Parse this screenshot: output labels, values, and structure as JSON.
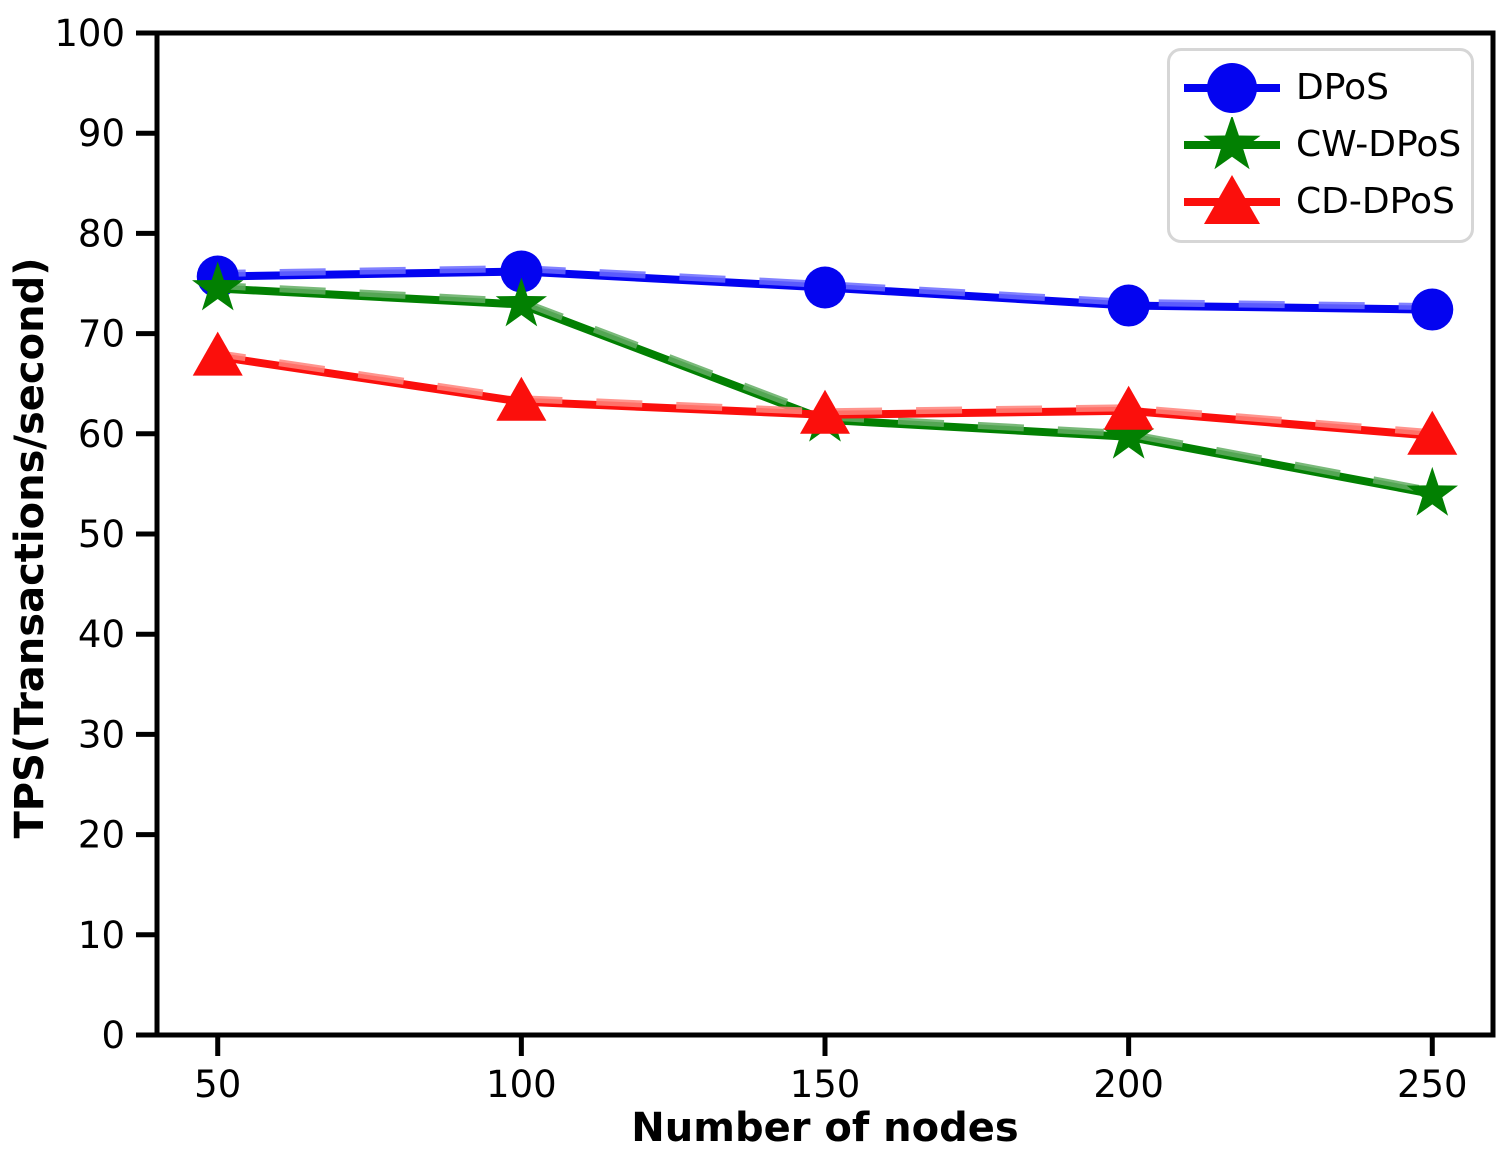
{
  "chart_data": {
    "type": "line",
    "title": "",
    "xlabel": "Number of nodes",
    "ylabel": "TPS(Transactions/second)",
    "x": [
      50,
      100,
      150,
      200,
      250
    ],
    "x_tick_labels": [
      "50",
      "100",
      "150",
      "200",
      "250"
    ],
    "y_ticks": [
      0,
      10,
      20,
      30,
      40,
      50,
      60,
      70,
      80,
      90,
      100
    ],
    "y_tick_labels": [
      "0",
      "10",
      "20",
      "30",
      "40",
      "50",
      "60",
      "70",
      "80",
      "90",
      "100"
    ],
    "xlim": [
      40,
      260
    ],
    "ylim": [
      0,
      100
    ],
    "grid": false,
    "legend": {
      "position": "upper right",
      "items": [
        "DPoS",
        "CW-DPoS",
        "CD-DPoS"
      ]
    },
    "series": [
      {
        "name": "DPoS",
        "marker": "circle",
        "color": "#0404f0",
        "light_color": "#6b6bff",
        "values": [
          75.7,
          76.2,
          74.6,
          72.8,
          72.4
        ]
      },
      {
        "name": "CW-DPoS",
        "marker": "star",
        "color": "#028002",
        "light_color": "#63ad63",
        "values": [
          74.5,
          72.9,
          61.4,
          59.7,
          54.0
        ]
      },
      {
        "name": "CD-DPoS",
        "marker": "triangle",
        "color": "#fb0f0c",
        "light_color": "#ff837a",
        "values": [
          67.7,
          63.2,
          61.9,
          62.3,
          59.8
        ]
      }
    ],
    "colors": {
      "axis": "#000000",
      "tick_label": "#000000",
      "legend_border": "#d6d6d6"
    }
  }
}
